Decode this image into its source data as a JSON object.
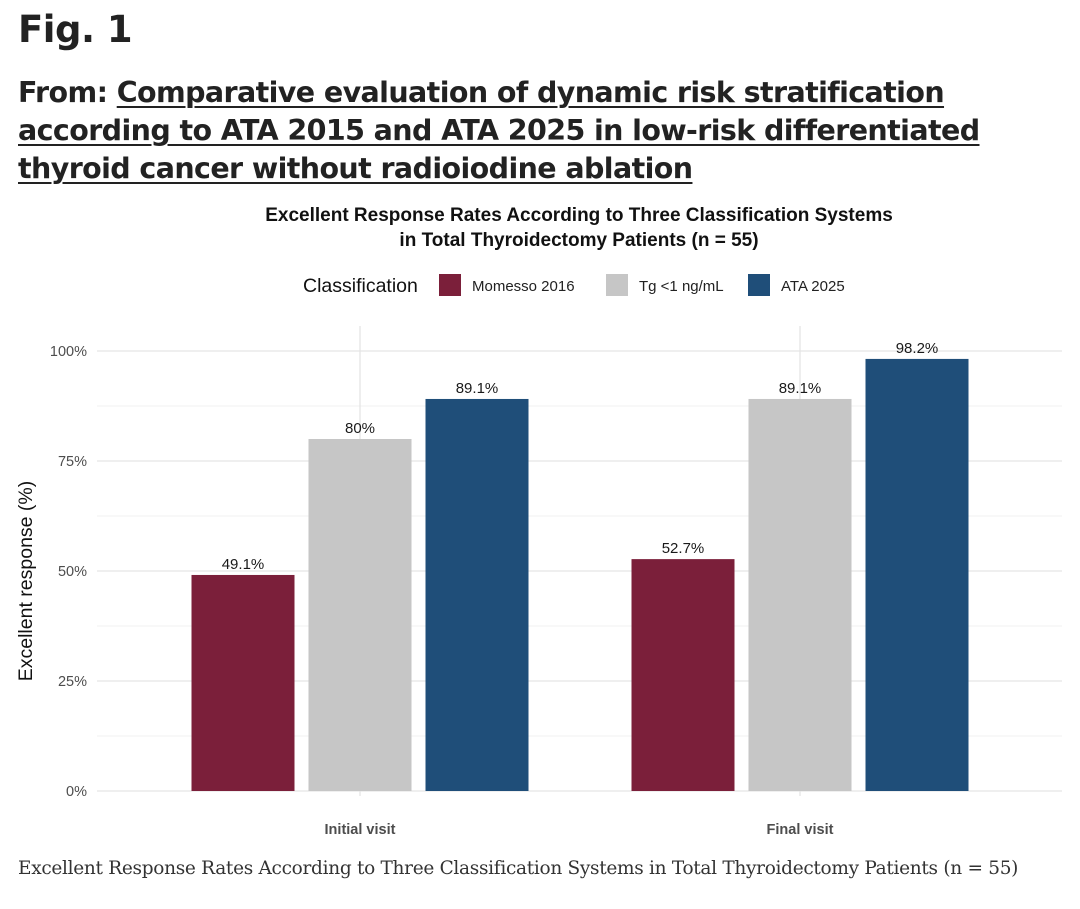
{
  "figure": {
    "label": "Fig. 1",
    "from_prefix": "From: ",
    "paper_title": "Comparative evaluation of dynamic risk stratification according to ATA 2015 and ATA 2025 in low-risk differentiated thyroid cancer without radioiodine ablation",
    "caption": "Excellent Response Rates According to Three Classification Systems in Total Thyroidectomy Patients (n = 55)"
  },
  "colors": {
    "Momesso 2016": "#7b1f3a",
    "Tg <1 ng/mL": "#c6c6c6",
    "ATA 2025": "#1f4e79",
    "grid": "#e5e5e5"
  },
  "chart_data": {
    "type": "bar",
    "title_lines": [
      "Excellent Response Rates According to Three Classification Systems",
      "in Total Thyroidectomy Patients (n = 55)"
    ],
    "legend_title": "Classification",
    "legend_position": "top",
    "categories": [
      "Initial visit",
      "Final visit"
    ],
    "series": [
      {
        "name": "Momesso 2016",
        "values": [
          49.1,
          52.7
        ],
        "labels": [
          "49.1%",
          "52.7%"
        ]
      },
      {
        "name": "Tg <1 ng/mL",
        "values": [
          80,
          89.1
        ],
        "labels": [
          "80%",
          "89.1%"
        ]
      },
      {
        "name": "ATA 2025",
        "values": [
          89.1,
          98.2
        ],
        "labels": [
          "89.1%",
          "98.2%"
        ]
      }
    ],
    "xlabel": "",
    "ylabel": "Excellent response (%)",
    "ylim": [
      0,
      100
    ],
    "yticks": [
      0,
      25,
      50,
      75,
      100
    ],
    "ytick_labels": [
      "0%",
      "25%",
      "50%",
      "75%",
      "100%"
    ],
    "grid": true
  }
}
